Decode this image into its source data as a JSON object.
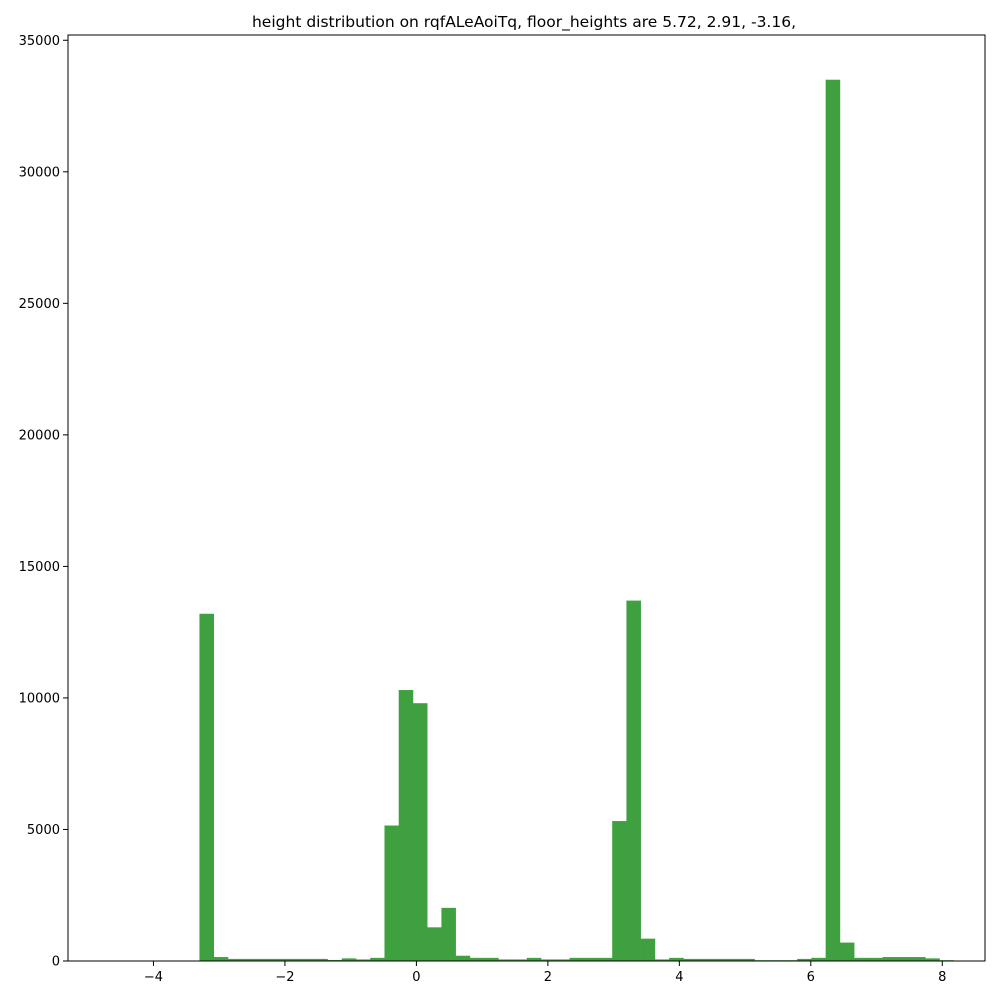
{
  "chart_data": {
    "type": "bar",
    "title": "height distribution on rqfALeAoiTq, floor_heights are 5.72, 2.91, -3.16,",
    "xlabel": "",
    "ylabel": "",
    "bar_color": "#3fa040",
    "grid": false,
    "legend": "none",
    "xlim": [
      -5.3,
      8.65
    ],
    "ylim": [
      0,
      35200
    ],
    "xticks": [
      -4,
      -2,
      0,
      2,
      4,
      6,
      8
    ],
    "xtick_labels": [
      "−4",
      "−2",
      "0",
      "2",
      "4",
      "6",
      "8"
    ],
    "yticks": [
      0,
      5000,
      10000,
      15000,
      20000,
      25000,
      30000,
      35000
    ],
    "ytick_labels": [
      "0",
      "5000",
      "10000",
      "15000",
      "20000",
      "25000",
      "30000",
      "35000"
    ],
    "bin_width": 0.2165,
    "bin_edges_start": -3.3,
    "counts": [
      13200,
      150,
      80,
      80,
      80,
      80,
      80,
      80,
      80,
      40,
      100,
      60,
      120,
      5150,
      10300,
      9800,
      1280,
      2020,
      200,
      120,
      120,
      60,
      60,
      120,
      60,
      60,
      120,
      120,
      120,
      5320,
      13700,
      850,
      60,
      120,
      80,
      80,
      80,
      80,
      80,
      30,
      30,
      30,
      80,
      120,
      33500,
      700,
      120,
      120,
      150,
      150,
      150,
      100,
      30,
      10
    ]
  }
}
